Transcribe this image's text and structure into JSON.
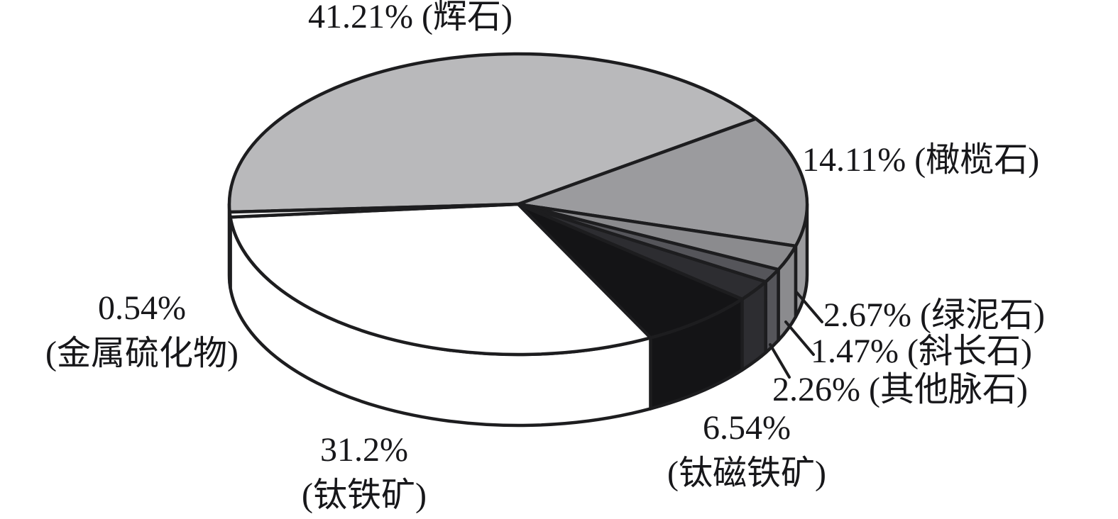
{
  "chart_data": {
    "type": "pie",
    "style": "3d",
    "title": "",
    "unit": "%",
    "legend": "none",
    "labels_placement": "outside-callouts",
    "background": "#ffffff",
    "outline_color": "#1d1d1f",
    "slices": [
      {
        "id": "pyroxene",
        "label": "辉石",
        "value": 41.21,
        "color": "#b9b9bb",
        "callout_lines": [
          "41.21% (辉石)"
        ]
      },
      {
        "id": "olivine",
        "label": "橄榄石",
        "value": 14.11,
        "color": "#9b9b9e",
        "callout_lines": [
          "14.11% (橄榄石)"
        ]
      },
      {
        "id": "chlorite",
        "label": "绿泥石",
        "value": 2.67,
        "color": "#8b8b8e",
        "callout_lines": [
          "2.67% (绿泥石)"
        ]
      },
      {
        "id": "plagioclase",
        "label": "斜长石",
        "value": 1.47,
        "color": "#55555a",
        "callout_lines": [
          "1.47% (斜长石)"
        ]
      },
      {
        "id": "other-gangue",
        "label": "其他脉石",
        "value": 2.26,
        "color": "#2d2d31",
        "callout_lines": [
          "2.26% (其他脉石)"
        ]
      },
      {
        "id": "titanomagnetite",
        "label": "钛磁铁矿",
        "value": 6.54,
        "color": "#141416",
        "callout_lines": [
          "6.54%",
          "(钛磁铁矿)"
        ]
      },
      {
        "id": "ilmenite",
        "label": "钛铁矿",
        "value": 31.2,
        "color": "#ffffff",
        "callout_lines": [
          "31.2%",
          "(钛铁矿)"
        ]
      },
      {
        "id": "metal-sulfide",
        "label": "金属硫化物",
        "value": 0.54,
        "color": "#ffffff",
        "callout_lines": [
          "0.54%",
          "(金属硫化物)"
        ]
      }
    ]
  }
}
